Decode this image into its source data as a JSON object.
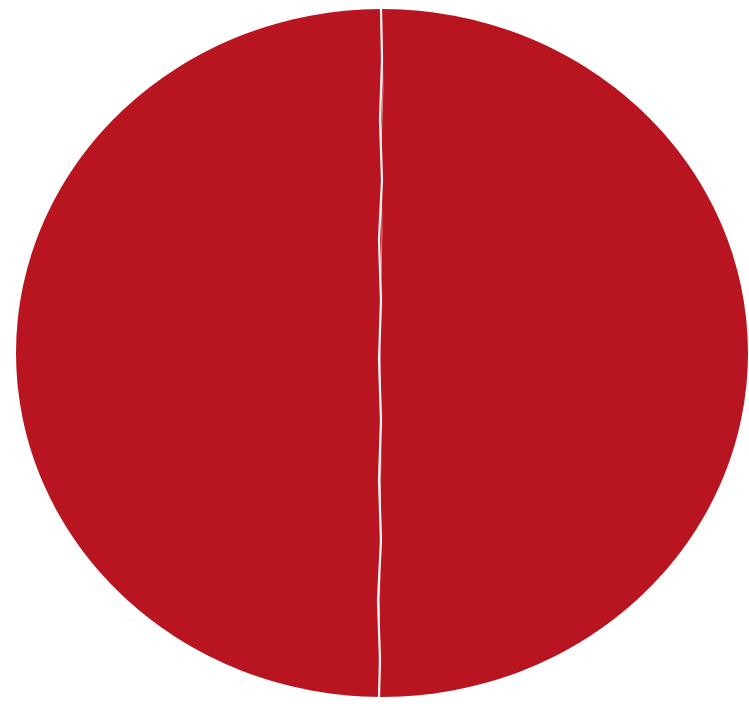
{
  "background_color": "#ffffff",
  "disc": {
    "fill_color": "#b91520",
    "shape": "circle"
  },
  "fold_line": {
    "color": "#fdf3f3",
    "orientation": "vertical"
  }
}
